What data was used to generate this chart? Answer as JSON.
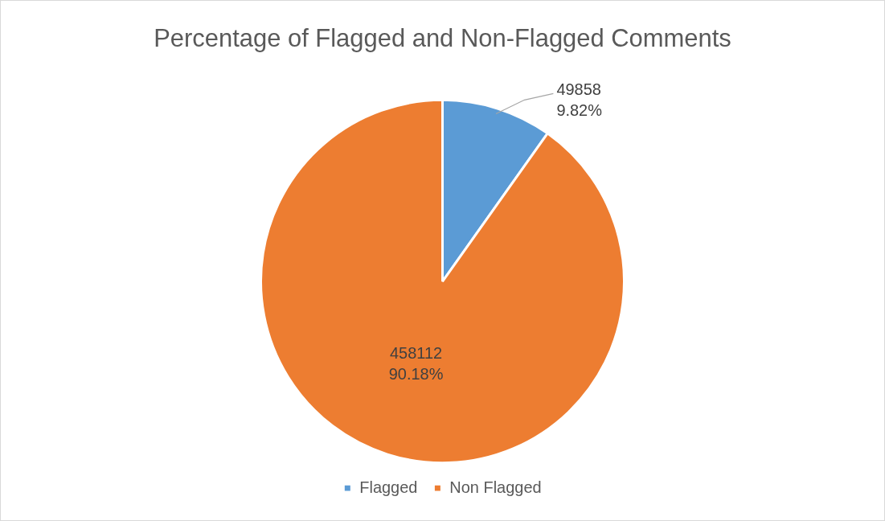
{
  "chart_data": {
    "type": "pie",
    "title": "Percentage of Flagged and Non-Flagged Comments",
    "categories": [
      "Flagged",
      "Non Flagged"
    ],
    "values": [
      49858,
      458112
    ],
    "colors": [
      "#5b9bd5",
      "#ed7d31"
    ],
    "value_labels": [
      "49858\n9.82%",
      "458112\n90.18%"
    ],
    "legend": "bottom"
  }
}
